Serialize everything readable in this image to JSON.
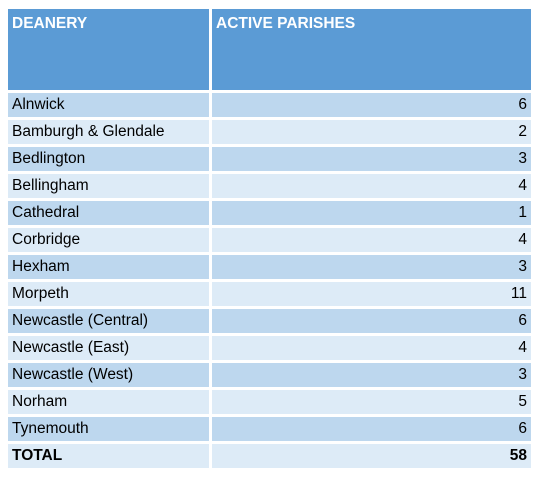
{
  "table": {
    "headers": {
      "deanery": "DEANERY",
      "active_parishes": "ACTIVE PARISHES"
    },
    "rows": [
      {
        "deanery": "Alnwick",
        "parishes": "6"
      },
      {
        "deanery": "Bamburgh & Glendale",
        "parishes": "2"
      },
      {
        "deanery": "Bedlington",
        "parishes": "3"
      },
      {
        "deanery": "Bellingham",
        "parishes": "4"
      },
      {
        "deanery": "Cathedral",
        "parishes": "1"
      },
      {
        "deanery": "Corbridge",
        "parishes": "4"
      },
      {
        "deanery": "Hexham",
        "parishes": "3"
      },
      {
        "deanery": "Morpeth",
        "parishes": "11"
      },
      {
        "deanery": "Newcastle (Central)",
        "parishes": "6"
      },
      {
        "deanery": "Newcastle (East)",
        "parishes": "4"
      },
      {
        "deanery": "Newcastle (West)",
        "parishes": "3"
      },
      {
        "deanery": "Norham",
        "parishes": "5"
      },
      {
        "deanery": "Tynemouth",
        "parishes": "6"
      }
    ],
    "total": {
      "label": "TOTAL",
      "value": "58"
    },
    "colors": {
      "header": "#5b9bd5",
      "row_dark": "#bdd7ee",
      "row_light": "#ddebf7"
    }
  }
}
